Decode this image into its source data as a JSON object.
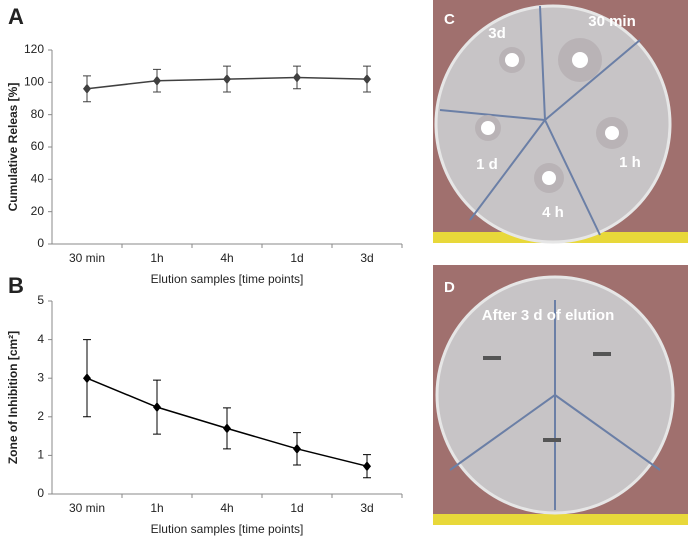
{
  "chart_data": [
    {
      "type": "line",
      "panel_label": "A",
      "y_label": "Cumulative Releas [%]",
      "x_label": "Elution samples [time points]",
      "categories": [
        "30 min",
        "1h",
        "4h",
        "1d",
        "3d"
      ],
      "values": [
        96,
        101,
        102,
        103,
        102
      ],
      "errors": [
        8,
        7,
        8,
        7,
        8
      ],
      "color": "#404040",
      "ylim": [
        0,
        120
      ],
      "yticks": [
        0,
        20,
        40,
        60,
        80,
        100,
        120
      ]
    },
    {
      "type": "line",
      "panel_label": "B",
      "y_label": "Zone of Inhibition [cm²]",
      "x_label": "Elution samples [time points]",
      "categories": [
        "30 min",
        "1h",
        "4h",
        "1d",
        "3d"
      ],
      "values": [
        3.0,
        2.25,
        1.7,
        1.17,
        0.72
      ],
      "errors": [
        1.0,
        0.7,
        0.53,
        0.42,
        0.3
      ],
      "color": "#000000",
      "ylim": [
        0,
        5
      ],
      "yticks": [
        0,
        1,
        2,
        3,
        4,
        5
      ]
    }
  ],
  "photos": [
    {
      "panel_label": "C",
      "labels": [
        "3d",
        "30 min",
        "1 d",
        "1 h",
        "4 h"
      ]
    },
    {
      "panel_label": "D",
      "labels": [
        "After 3 d of elution"
      ]
    }
  ]
}
